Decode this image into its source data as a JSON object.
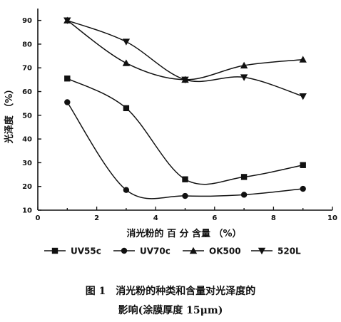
{
  "chart_data": {
    "type": "line",
    "xlabel": "消光粉的 百 分 含量 （%）",
    "ylabel": "光泽度 （%）",
    "xlim": [
      0,
      10
    ],
    "ylim": [
      10,
      95
    ],
    "xticks": [
      0,
      2,
      4,
      6,
      8,
      10
    ],
    "yticks": [
      10,
      20,
      30,
      40,
      50,
      60,
      70,
      80,
      90
    ],
    "grid": false,
    "legend_position": "bottom",
    "series": [
      {
        "name": "UV55c",
        "marker": "square",
        "x": [
          1,
          3,
          5,
          7,
          9
        ],
        "values": [
          65.5,
          53,
          23,
          24,
          29
        ]
      },
      {
        "name": "UV70c",
        "marker": "circle",
        "x": [
          1,
          3,
          5,
          7,
          9
        ],
        "values": [
          55.5,
          18.5,
          16,
          16.5,
          19
        ]
      },
      {
        "name": "OK500",
        "marker": "triangle-up",
        "x": [
          1,
          3,
          5,
          7,
          9
        ],
        "values": [
          90,
          72,
          65,
          71,
          73.5
        ]
      },
      {
        "name": "520L",
        "marker": "triangle-down",
        "x": [
          1,
          3,
          5,
          7,
          9
        ],
        "values": [
          90,
          81,
          65,
          66,
          58
        ]
      }
    ]
  },
  "caption": {
    "line1": "图 1　消光粉的种类和含量对光泽度的",
    "line2": "影响(涂膜厚度 15μm)"
  }
}
